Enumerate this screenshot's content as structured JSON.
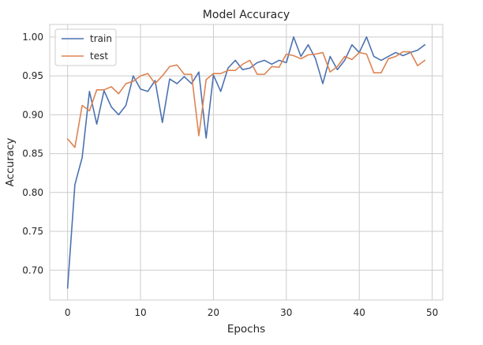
{
  "chart_data": {
    "type": "line",
    "title": "Model Accuracy",
    "xlabel": "Epochs",
    "ylabel": "Accuracy",
    "xlim": [
      -2.45,
      51.45
    ],
    "ylim": [
      0.6617,
      1.0161
    ],
    "xticks": [
      0,
      10,
      20,
      30,
      40,
      50
    ],
    "yticks": [
      0.7,
      0.75,
      0.8,
      0.85,
      0.9,
      0.95,
      1.0
    ],
    "ytick_labels": [
      "0.70",
      "0.75",
      "0.80",
      "0.85",
      "0.90",
      "0.95",
      "1.00"
    ],
    "grid": true,
    "legend_position": "top-left",
    "x": [
      0,
      1,
      2,
      3,
      4,
      5,
      6,
      7,
      8,
      9,
      10,
      11,
      12,
      13,
      14,
      15,
      16,
      17,
      18,
      19,
      20,
      21,
      22,
      23,
      24,
      25,
      26,
      27,
      28,
      29,
      30,
      31,
      32,
      33,
      34,
      35,
      36,
      37,
      38,
      39,
      40,
      41,
      42,
      43,
      44,
      45,
      46,
      47,
      48,
      49
    ],
    "series": [
      {
        "name": "train",
        "color": "#4c72b0",
        "values": [
          0.677,
          0.81,
          0.845,
          0.93,
          0.888,
          0.931,
          0.91,
          0.9,
          0.912,
          0.95,
          0.933,
          0.93,
          0.944,
          0.89,
          0.946,
          0.94,
          0.949,
          0.94,
          0.955,
          0.87,
          0.951,
          0.93,
          0.96,
          0.97,
          0.958,
          0.96,
          0.967,
          0.97,
          0.965,
          0.97,
          0.967,
          1.0,
          0.975,
          0.99,
          0.972,
          0.94,
          0.975,
          0.958,
          0.97,
          0.99,
          0.98,
          1.0,
          0.975,
          0.97,
          0.975,
          0.98,
          0.976,
          0.98,
          0.983,
          0.99
        ]
      },
      {
        "name": "test",
        "color": "#dd8452",
        "values": [
          0.869,
          0.858,
          0.912,
          0.905,
          0.932,
          0.932,
          0.936,
          0.927,
          0.94,
          0.943,
          0.95,
          0.953,
          0.94,
          0.95,
          0.962,
          0.964,
          0.952,
          0.952,
          0.873,
          0.945,
          0.953,
          0.953,
          0.957,
          0.957,
          0.965,
          0.97,
          0.952,
          0.952,
          0.962,
          0.961,
          0.978,
          0.976,
          0.972,
          0.977,
          0.978,
          0.98,
          0.955,
          0.962,
          0.975,
          0.971,
          0.98,
          0.978,
          0.954,
          0.954,
          0.972,
          0.975,
          0.981,
          0.981,
          0.963,
          0.97
        ]
      }
    ]
  }
}
